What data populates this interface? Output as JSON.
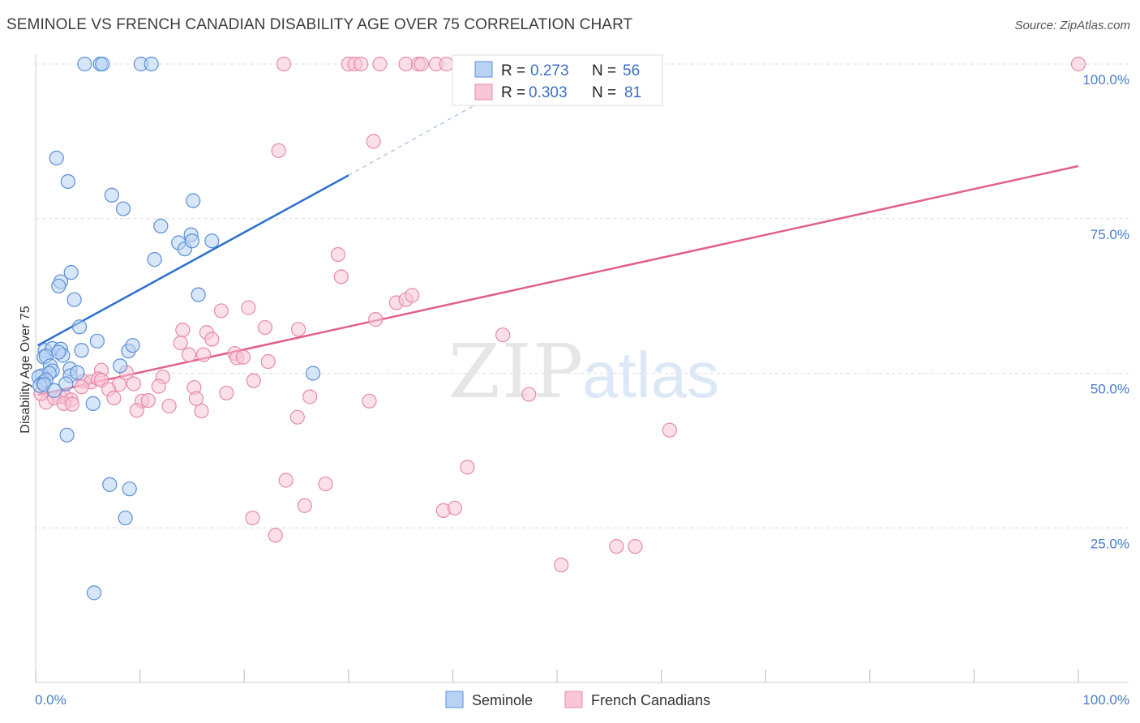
{
  "title": "SEMINOLE VS FRENCH CANADIAN DISABILITY AGE OVER 75 CORRELATION CHART",
  "source": "Source: ZipAtlas.com",
  "watermark": {
    "zip": "ZIP",
    "atlas": "atlas"
  },
  "colors": {
    "seminole_fill": "#b8d2f4",
    "seminole_stroke": "#5a8fd6",
    "seminole_line": "#2b6fce",
    "french_fill": "#f8c6d6",
    "french_stroke": "#e88aa8",
    "french_line": "#e0608a",
    "grid": "#dddddd",
    "tick": "#4a7cc7"
  },
  "legend": {
    "rows": [
      {
        "r_label": "R =",
        "r_value": "0.273",
        "n_label": "N =",
        "n_value": "56"
      },
      {
        "r_label": "R =",
        "r_value": "0.303",
        "n_label": "N =",
        "n_value": "81"
      }
    ]
  },
  "chart_data": {
    "type": "scatter",
    "title": "SEMINOLE VS FRENCH CANADIAN DISABILITY AGE OVER 75 CORRELATION CHART",
    "xlabel": "",
    "ylabel": "Disability Age Over 75",
    "xlim": [
      0,
      100
    ],
    "ylim": [
      0,
      100
    ],
    "x_tick_labels": [
      "0.0%",
      "100.0%"
    ],
    "y_ticks": [
      25,
      50,
      75,
      100
    ],
    "y_tick_labels": [
      "25.0%",
      "50.0%",
      "75.0%",
      "100.0%"
    ],
    "grid": true,
    "legend_position": "top-center",
    "series": [
      {
        "name": "Seminole",
        "color": "#5a8fd6",
        "trend": {
          "x0": 0.2,
          "y0": 54.5,
          "x1": 30,
          "y1": 82,
          "dash_to_x": 46,
          "dash_to_y": 97
        },
        "points": [
          [
            4.7,
            100
          ],
          [
            6.2,
            100
          ],
          [
            6.4,
            100
          ],
          [
            10.1,
            100
          ],
          [
            11.1,
            100
          ],
          [
            2.0,
            84.8
          ],
          [
            3.1,
            81.0
          ],
          [
            7.3,
            78.8
          ],
          [
            8.4,
            76.6
          ],
          [
            15.1,
            77.9
          ],
          [
            12.0,
            73.8
          ],
          [
            13.7,
            71.1
          ],
          [
            14.3,
            70.1
          ],
          [
            14.9,
            72.4
          ],
          [
            15.0,
            71.4
          ],
          [
            16.9,
            71.4
          ],
          [
            11.4,
            68.4
          ],
          [
            3.4,
            66.3
          ],
          [
            2.4,
            64.8
          ],
          [
            2.2,
            64.1
          ],
          [
            3.7,
            61.9
          ],
          [
            15.6,
            62.7
          ],
          [
            4.2,
            57.5
          ],
          [
            5.9,
            55.2
          ],
          [
            0.9,
            53.7
          ],
          [
            1.6,
            54.0
          ],
          [
            2.4,
            53.9
          ],
          [
            4.4,
            53.7
          ],
          [
            8.9,
            53.6
          ],
          [
            9.3,
            54.5
          ],
          [
            0.8,
            52.6
          ],
          [
            1.0,
            52.8
          ],
          [
            2.6,
            52.9
          ],
          [
            1.4,
            51.2
          ],
          [
            1.6,
            50.4
          ],
          [
            3.3,
            50.7
          ],
          [
            0.6,
            49.6
          ],
          [
            1.3,
            50.0
          ],
          [
            3.3,
            49.6
          ],
          [
            4.0,
            50.1
          ],
          [
            8.1,
            51.2
          ],
          [
            0.3,
            49.4
          ],
          [
            0.7,
            48.5
          ],
          [
            1.0,
            48.9
          ],
          [
            2.9,
            48.3
          ],
          [
            0.4,
            48.0
          ],
          [
            0.8,
            48.2
          ],
          [
            1.8,
            47.2
          ],
          [
            5.5,
            45.1
          ],
          [
            26.6,
            50.0
          ],
          [
            3.0,
            40.0
          ],
          [
            7.1,
            32.0
          ],
          [
            9.0,
            31.3
          ],
          [
            8.6,
            26.6
          ],
          [
            5.6,
            14.5
          ],
          [
            2.2,
            53.4
          ]
        ]
      },
      {
        "name": "French Canadians",
        "color": "#e88aa8",
        "trend": {
          "x0": 0.2,
          "y0": 46.5,
          "x1": 100,
          "y1": 83.5
        },
        "points": [
          [
            23.8,
            100
          ],
          [
            30.0,
            100
          ],
          [
            30.6,
            100
          ],
          [
            31.2,
            100
          ],
          [
            33.0,
            100
          ],
          [
            35.5,
            100
          ],
          [
            36.7,
            100
          ],
          [
            37.0,
            100
          ],
          [
            38.4,
            100
          ],
          [
            39.4,
            100
          ],
          [
            52.0,
            100
          ],
          [
            100,
            100
          ],
          [
            23.3,
            86.0
          ],
          [
            32.4,
            87.5
          ],
          [
            29.0,
            69.2
          ],
          [
            29.3,
            65.6
          ],
          [
            34.6,
            61.4
          ],
          [
            35.5,
            61.9
          ],
          [
            36.1,
            62.6
          ],
          [
            20.4,
            60.6
          ],
          [
            17.8,
            60.1
          ],
          [
            32.6,
            58.7
          ],
          [
            14.1,
            57.0
          ],
          [
            16.4,
            56.6
          ],
          [
            22.0,
            57.4
          ],
          [
            25.2,
            57.1
          ],
          [
            44.8,
            56.2
          ],
          [
            16.9,
            55.5
          ],
          [
            13.9,
            54.9
          ],
          [
            14.7,
            53.0
          ],
          [
            16.1,
            53.0
          ],
          [
            19.1,
            53.2
          ],
          [
            19.3,
            52.5
          ],
          [
            19.9,
            52.6
          ],
          [
            22.3,
            51.9
          ],
          [
            6.3,
            50.5
          ],
          [
            8.7,
            50.1
          ],
          [
            12.2,
            49.4
          ],
          [
            4.6,
            48.7
          ],
          [
            5.3,
            48.6
          ],
          [
            6.0,
            49.1
          ],
          [
            8.0,
            48.2
          ],
          [
            9.4,
            48.3
          ],
          [
            20.9,
            48.8
          ],
          [
            2.3,
            46.2
          ],
          [
            2.9,
            46.1
          ],
          [
            3.4,
            45.7
          ],
          [
            4.4,
            47.8
          ],
          [
            6.3,
            48.9
          ],
          [
            7.0,
            47.4
          ],
          [
            11.8,
            47.9
          ],
          [
            15.2,
            47.7
          ],
          [
            18.3,
            46.8
          ],
          [
            26.3,
            46.2
          ],
          [
            47.3,
            46.6
          ],
          [
            1.0,
            45.3
          ],
          [
            1.8,
            46.0
          ],
          [
            2.7,
            45.1
          ],
          [
            3.5,
            45.0
          ],
          [
            7.5,
            46.0
          ],
          [
            10.2,
            45.5
          ],
          [
            10.8,
            45.6
          ],
          [
            12.8,
            44.7
          ],
          [
            15.4,
            45.9
          ],
          [
            32.0,
            45.5
          ],
          [
            9.7,
            44.0
          ],
          [
            15.9,
            43.9
          ],
          [
            25.1,
            42.9
          ],
          [
            60.8,
            40.8
          ],
          [
            0.5,
            46.7
          ],
          [
            41.4,
            34.8
          ],
          [
            24.0,
            32.7
          ],
          [
            27.8,
            32.1
          ],
          [
            25.8,
            28.6
          ],
          [
            39.1,
            27.8
          ],
          [
            40.2,
            28.2
          ],
          [
            20.8,
            26.6
          ],
          [
            23.0,
            23.8
          ],
          [
            55.7,
            22.0
          ],
          [
            57.5,
            22.0
          ],
          [
            50.4,
            19.0
          ]
        ]
      }
    ]
  }
}
